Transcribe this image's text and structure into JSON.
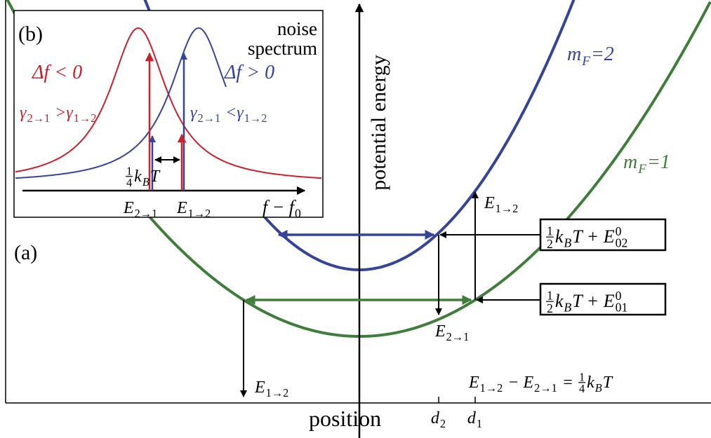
{
  "panel_a": {
    "label": [
      {
        "text": "(a)"
      }
    ],
    "y_axis_label": [
      {
        "text": "potential energy"
      }
    ],
    "x_axis_label": [
      {
        "text": "position"
      }
    ],
    "curve_upper": [
      {
        "text": "m"
      },
      {
        "sub": "F"
      },
      {
        "text": "=2"
      }
    ],
    "curve_lower": [
      {
        "text": "m"
      },
      {
        "sub": "F"
      },
      {
        "text": "=1"
      }
    ],
    "box_upper": [
      {
        "num": "1",
        "den": "2"
      },
      {
        "text": "k"
      },
      {
        "sub": "B"
      },
      {
        "text": "T + E"
      },
      {
        "sup": "0",
        "sub": "02"
      }
    ],
    "box_lower": [
      {
        "num": "1",
        "den": "2"
      },
      {
        "text": "k"
      },
      {
        "sub": "B"
      },
      {
        "text": "T + E"
      },
      {
        "sup": "0",
        "sub": "01"
      }
    ],
    "transition_up_right": [
      {
        "text": "E"
      },
      {
        "sub": "1→2"
      }
    ],
    "transition_down": [
      {
        "text": "E"
      },
      {
        "sub": "2→1"
      }
    ],
    "transition_down_left": [
      {
        "text": "E"
      },
      {
        "sub": "1→2"
      }
    ],
    "relation": [
      {
        "text": "E"
      },
      {
        "sub": "1→2"
      },
      {
        "text": " − E"
      },
      {
        "sub": "2→1"
      },
      {
        "text": " = "
      },
      {
        "num": "1",
        "den": "4"
      },
      {
        "text": "k"
      },
      {
        "sub": "B"
      },
      {
        "text": "T"
      }
    ],
    "position_ticks": [
      [
        {
          "text": "d"
        },
        {
          "sub": "2"
        }
      ],
      [
        {
          "text": "d"
        },
        {
          "sub": "1"
        }
      ]
    ]
  },
  "panel_b": {
    "label": [
      {
        "text": "(b)"
      }
    ],
    "title": [
      [
        {
          "text": "noise"
        }
      ],
      [
        {
          "text": "spectrum"
        }
      ]
    ],
    "red_detuning": [
      {
        "text": "Δf < 0"
      }
    ],
    "blue_detuning": [
      {
        "text": "Δf > 0"
      }
    ],
    "red_rates": [
      {
        "text": "γ"
      },
      {
        "sub": "2→1"
      },
      {
        "text": " >γ"
      },
      {
        "sub": "1→2"
      }
    ],
    "blue_rates": [
      {
        "text": "γ"
      },
      {
        "sub": "2→1"
      },
      {
        "text": " <γ"
      },
      {
        "sub": "1→2"
      }
    ],
    "splitting": [
      {
        "num": "1",
        "den": "4"
      },
      {
        "text": "k"
      },
      {
        "sub": "B"
      },
      {
        "text": "T"
      }
    ],
    "energy_left": [
      {
        "text": "E"
      },
      {
        "sub": "2→1"
      }
    ],
    "energy_right": [
      {
        "text": "E"
      },
      {
        "sub": "1→2"
      }
    ],
    "x_axis_label": [
      {
        "text": "f − f"
      },
      {
        "sub": "0"
      }
    ]
  }
}
